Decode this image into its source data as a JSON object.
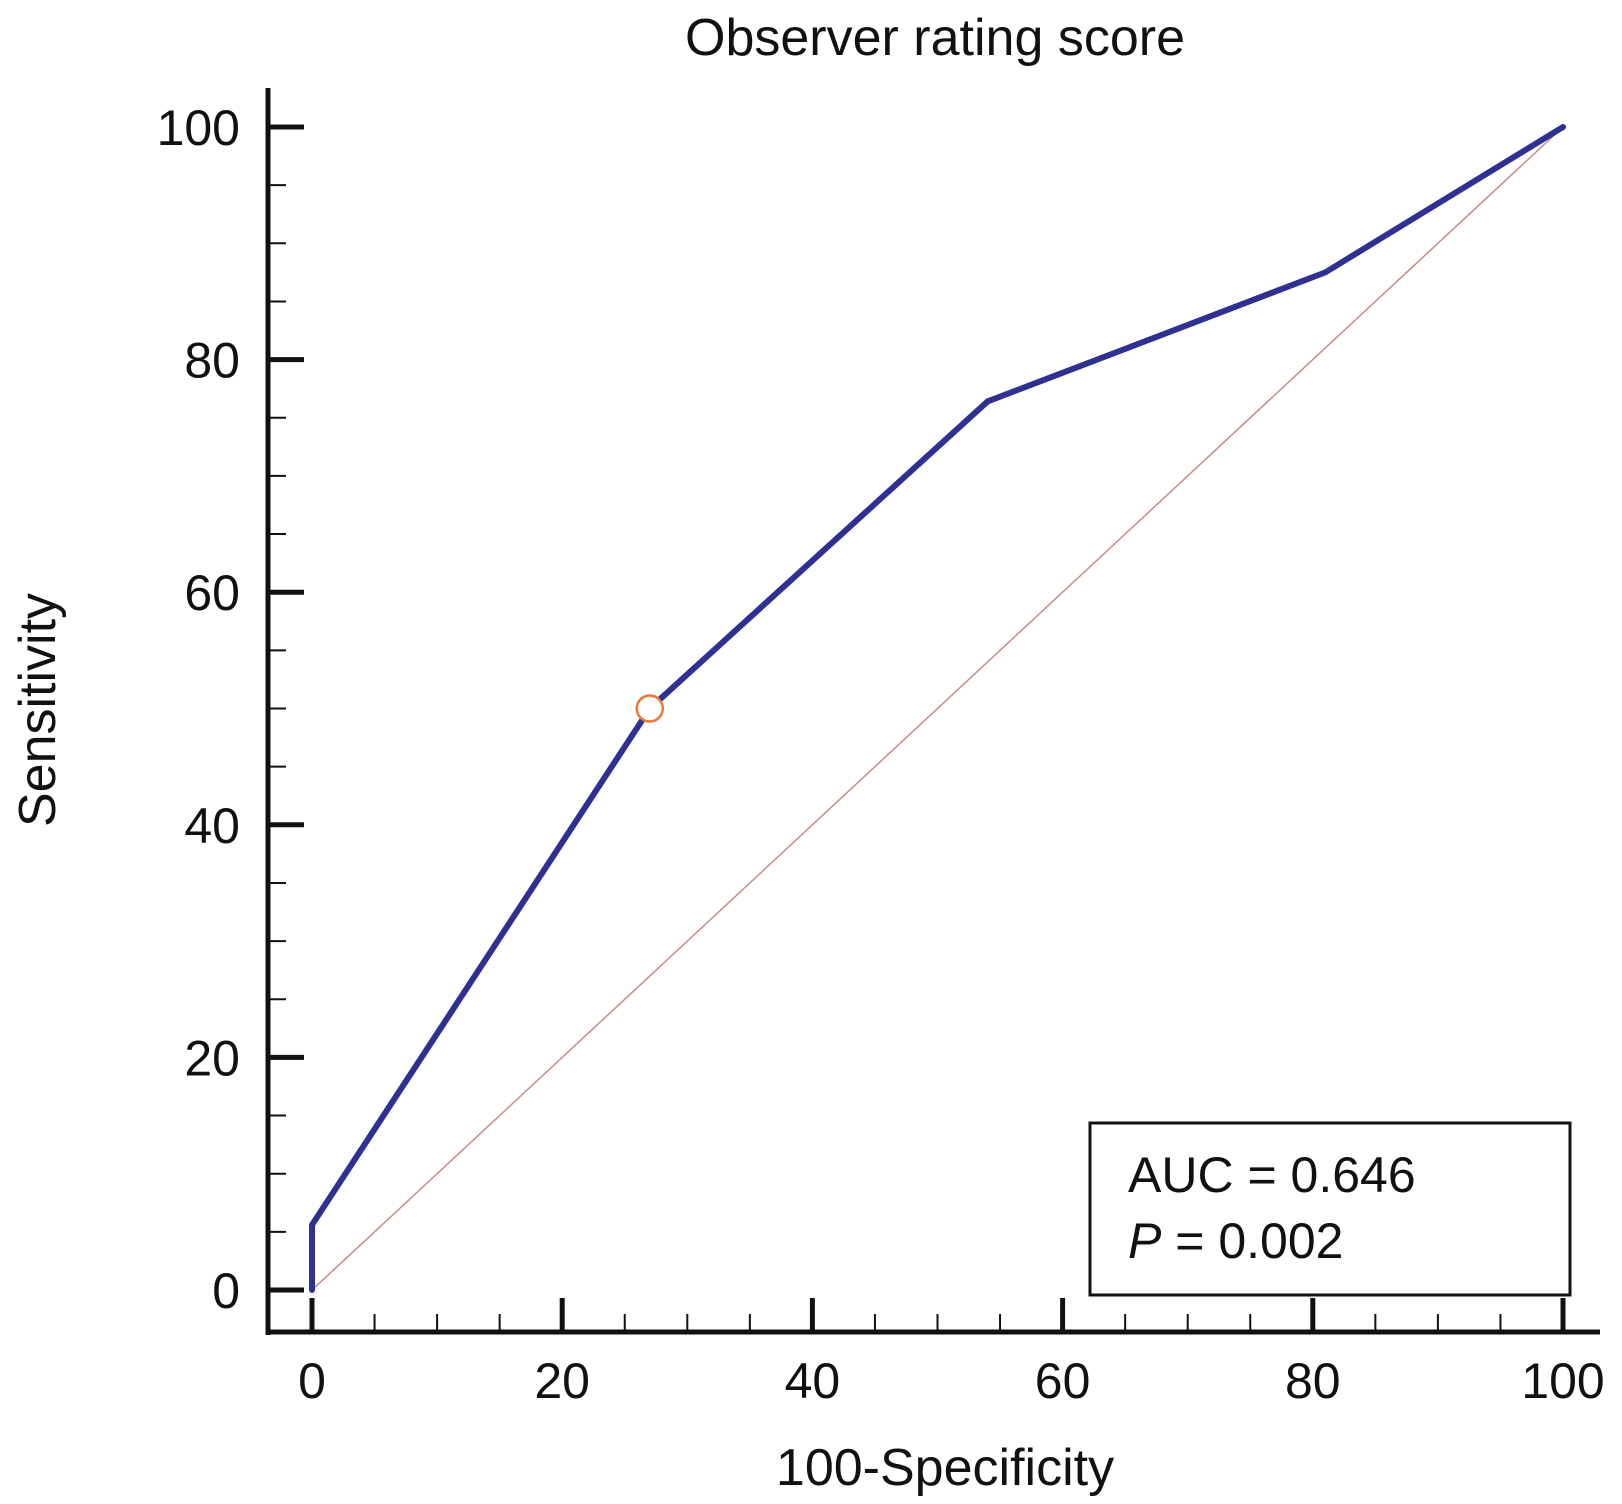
{
  "chart_data": {
    "type": "line",
    "title": "Observer rating score",
    "xlabel": "100-Specificity",
    "ylabel": "Sensitivity",
    "xlim": [
      0,
      100
    ],
    "ylim": [
      0,
      100
    ],
    "xticks": [
      "0",
      "20",
      "40",
      "60",
      "80",
      "100"
    ],
    "yticks": [
      "0",
      "20",
      "40",
      "60",
      "80",
      "100"
    ],
    "series": [
      {
        "name": "ROC curve",
        "color": "#2e3192",
        "x": [
          0,
          0,
          27,
          54,
          81,
          100
        ],
        "y": [
          0,
          5.6,
          50,
          76.4,
          87.5,
          100
        ]
      },
      {
        "name": "Reference line",
        "color": "#c98a8a",
        "x": [
          0,
          100
        ],
        "y": [
          0,
          100
        ]
      }
    ],
    "marker": {
      "x": 27,
      "y": 50,
      "color": "#e8793a"
    },
    "annotation": {
      "auc_text": "AUC = 0.646",
      "p_symbol": "P",
      "p_text": " = 0.002"
    }
  }
}
